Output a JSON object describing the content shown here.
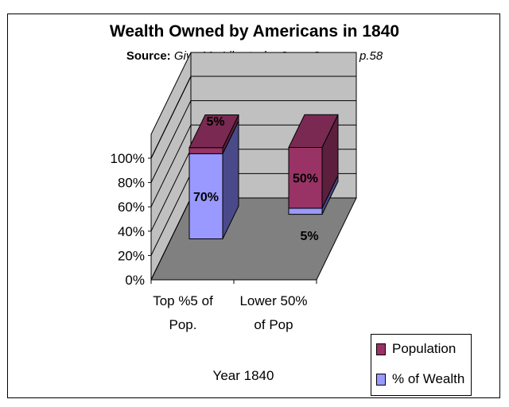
{
  "title": "Wealth Owned by Americans in 1840",
  "subtitle": {
    "source_label": "Source:",
    "source_text": "Give Me Liberty, by Gerry Spence, p.58"
  },
  "chart_data": {
    "type": "bar",
    "stacked": true,
    "three_d": true,
    "categories": [
      "Top %5 of Pop.",
      "Lower 50% of Pop"
    ],
    "category_lines": [
      [
        "Top %5 of",
        "Pop."
      ],
      [
        "Lower 50%",
        "of Pop"
      ]
    ],
    "series": [
      {
        "name": "% of Wealth",
        "values": [
          70,
          5
        ],
        "labels": [
          "70%",
          "5%"
        ],
        "color": "#9999ff"
      },
      {
        "name": "Population",
        "values": [
          5,
          50
        ],
        "labels": [
          "5%",
          "50%"
        ],
        "color": "#993366"
      }
    ],
    "y_ticks": [
      "0%",
      "20%",
      "40%",
      "60%",
      "80%",
      "100%"
    ],
    "ylim": [
      0,
      100
    ],
    "xlabel": "Year 1840",
    "ylabel": "",
    "grid": true,
    "legend_position": "bottom-right"
  },
  "colors": {
    "wall": "#c0c0c0",
    "floor": "#808080",
    "wealth_side": "#4a4a8a",
    "population_side": "#5c1f3d",
    "population_top": "#7a2a52"
  }
}
